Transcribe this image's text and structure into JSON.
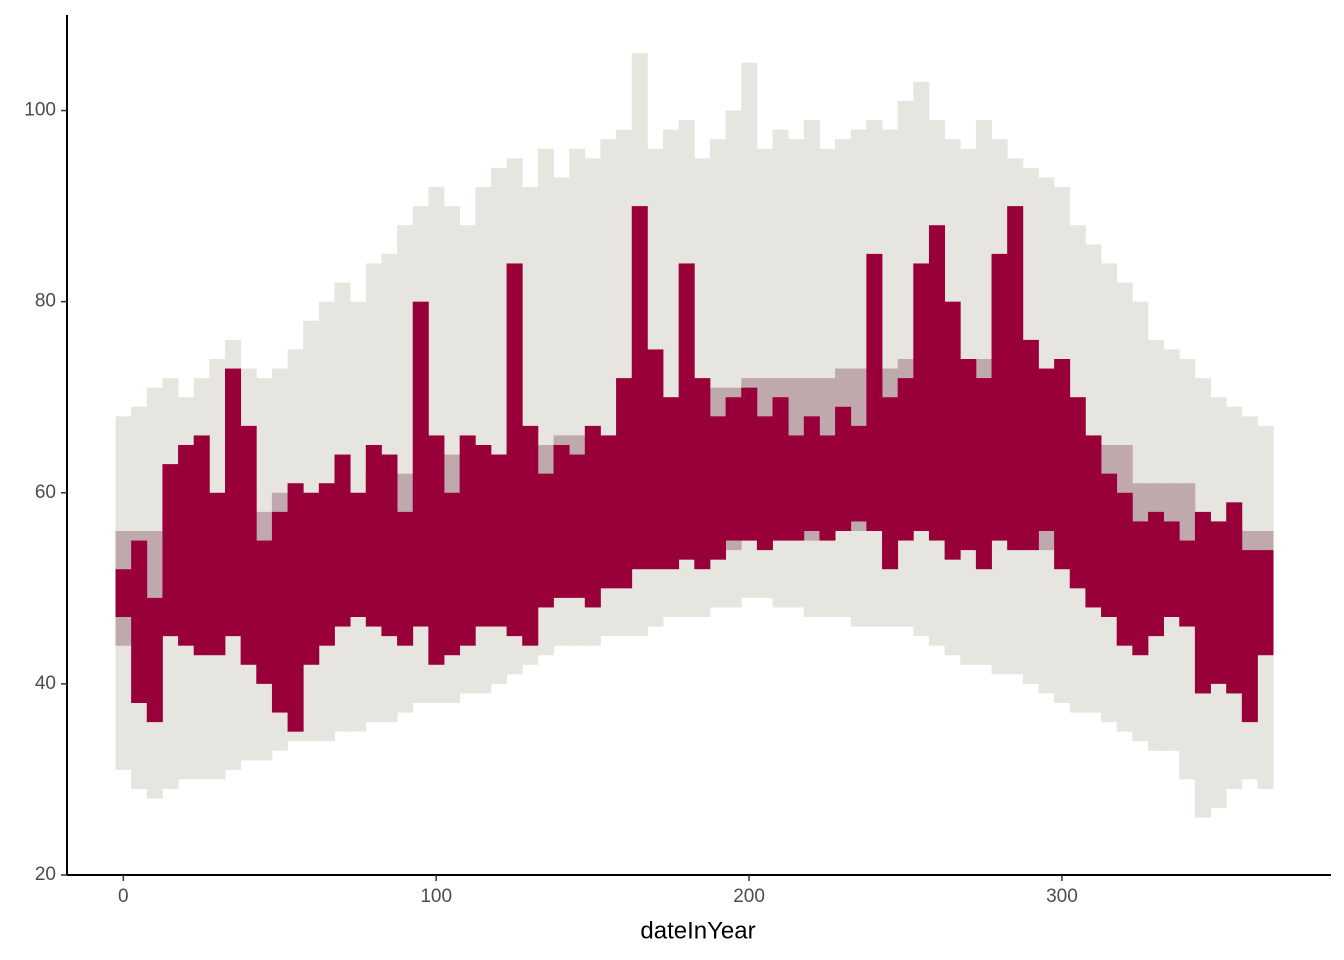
{
  "chart_data": {
    "type": "range-bar",
    "x_label": "dateInYear",
    "xlim": [
      -18,
      386
    ],
    "ylim": [
      20,
      110
    ],
    "xticks": [
      0,
      100,
      200,
      300
    ],
    "yticks": [
      20,
      40,
      60,
      80,
      100
    ],
    "bar_days": 5,
    "x": [
      0,
      5,
      10,
      15,
      20,
      25,
      30,
      35,
      40,
      45,
      50,
      55,
      60,
      65,
      70,
      75,
      80,
      85,
      90,
      95,
      100,
      105,
      110,
      115,
      120,
      125,
      130,
      135,
      140,
      145,
      150,
      155,
      160,
      165,
      170,
      175,
      180,
      185,
      190,
      195,
      200,
      205,
      210,
      215,
      220,
      225,
      230,
      235,
      240,
      245,
      250,
      255,
      260,
      265,
      270,
      275,
      280,
      285,
      290,
      295,
      300,
      305,
      310,
      315,
      320,
      325,
      330,
      335,
      340,
      345,
      350,
      355,
      360,
      365
    ],
    "series": [
      {
        "color": "#e6e5df",
        "low": [
          31,
          29,
          28,
          29,
          30,
          30,
          30,
          31,
          32,
          32,
          33,
          34,
          34,
          34,
          35,
          35,
          36,
          36,
          37,
          38,
          38,
          38,
          39,
          39,
          40,
          41,
          42,
          43,
          44,
          44,
          44,
          45,
          45,
          45,
          46,
          47,
          47,
          47,
          48,
          48,
          49,
          49,
          48,
          48,
          47,
          47,
          47,
          46,
          46,
          46,
          46,
          45,
          44,
          43,
          42,
          42,
          41,
          41,
          40,
          39,
          38,
          37,
          37,
          36,
          35,
          34,
          33,
          33,
          30,
          26,
          27,
          29,
          30,
          29
        ],
        "high": [
          68,
          69,
          71,
          72,
          70,
          72,
          74,
          76,
          73,
          72,
          73,
          75,
          78,
          80,
          82,
          80,
          84,
          85,
          88,
          90,
          92,
          90,
          88,
          92,
          94,
          95,
          92,
          96,
          93,
          96,
          95,
          97,
          98,
          106,
          96,
          98,
          99,
          95,
          97,
          100,
          105,
          96,
          98,
          97,
          99,
          96,
          97,
          98,
          99,
          98,
          101,
          103,
          99,
          97,
          96,
          99,
          97,
          95,
          94,
          93,
          92,
          88,
          86,
          84,
          82,
          80,
          76,
          75,
          74,
          72,
          70,
          69,
          68,
          67
        ]
      },
      {
        "color": "#bfa9ad",
        "low": [
          44,
          44,
          44,
          45,
          45,
          45,
          45,
          45,
          45,
          45,
          48,
          48,
          48,
          48,
          48,
          48,
          48,
          48,
          48,
          48,
          48,
          49,
          49,
          49,
          49,
          50,
          50,
          50,
          51,
          51,
          51,
          51,
          53,
          53,
          53,
          53,
          54,
          54,
          54,
          54,
          55,
          55,
          55,
          55,
          55,
          55,
          56,
          56,
          56,
          56,
          56,
          56,
          56,
          56,
          56,
          56,
          55,
          55,
          55,
          54,
          54,
          52,
          52,
          52,
          52,
          50,
          50,
          50,
          50,
          47,
          47,
          47,
          44,
          44
        ],
        "high": [
          56,
          56,
          56,
          58,
          58,
          58,
          58,
          58,
          58,
          58,
          60,
          60,
          60,
          60,
          60,
          60,
          62,
          62,
          62,
          62,
          62,
          64,
          64,
          64,
          64,
          65,
          65,
          65,
          66,
          66,
          66,
          66,
          70,
          70,
          70,
          70,
          71,
          71,
          71,
          71,
          72,
          72,
          72,
          72,
          72,
          72,
          73,
          73,
          73,
          73,
          74,
          74,
          74,
          74,
          74,
          74,
          73,
          73,
          73,
          69,
          69,
          65,
          65,
          65,
          65,
          61,
          61,
          61,
          61,
          57,
          57,
          57,
          56,
          56
        ]
      },
      {
        "color": "#99003a",
        "low": [
          47,
          38,
          36,
          45,
          44,
          43,
          43,
          45,
          42,
          40,
          37,
          35,
          42,
          44,
          46,
          47,
          46,
          45,
          44,
          46,
          42,
          43,
          44,
          46,
          46,
          45,
          44,
          48,
          49,
          49,
          48,
          50,
          50,
          52,
          52,
          52,
          53,
          52,
          53,
          55,
          55,
          54,
          55,
          55,
          56,
          55,
          56,
          57,
          56,
          52,
          55,
          56,
          55,
          53,
          54,
          52,
          55,
          54,
          54,
          56,
          52,
          50,
          48,
          47,
          44,
          43,
          45,
          47,
          46,
          39,
          40,
          39,
          36,
          43
        ],
        "high": [
          52,
          55,
          49,
          63,
          65,
          66,
          60,
          73,
          67,
          55,
          58,
          61,
          60,
          61,
          64,
          60,
          65,
          64,
          58,
          80,
          66,
          60,
          66,
          65,
          64,
          84,
          67,
          62,
          65,
          64,
          67,
          66,
          72,
          90,
          75,
          70,
          84,
          72,
          68,
          70,
          71,
          68,
          70,
          66,
          68,
          66,
          69,
          67,
          85,
          70,
          72,
          84,
          88,
          80,
          74,
          72,
          85,
          90,
          76,
          73,
          74,
          70,
          66,
          62,
          60,
          57,
          58,
          57,
          55,
          58,
          57,
          59,
          54,
          54
        ]
      }
    ]
  }
}
